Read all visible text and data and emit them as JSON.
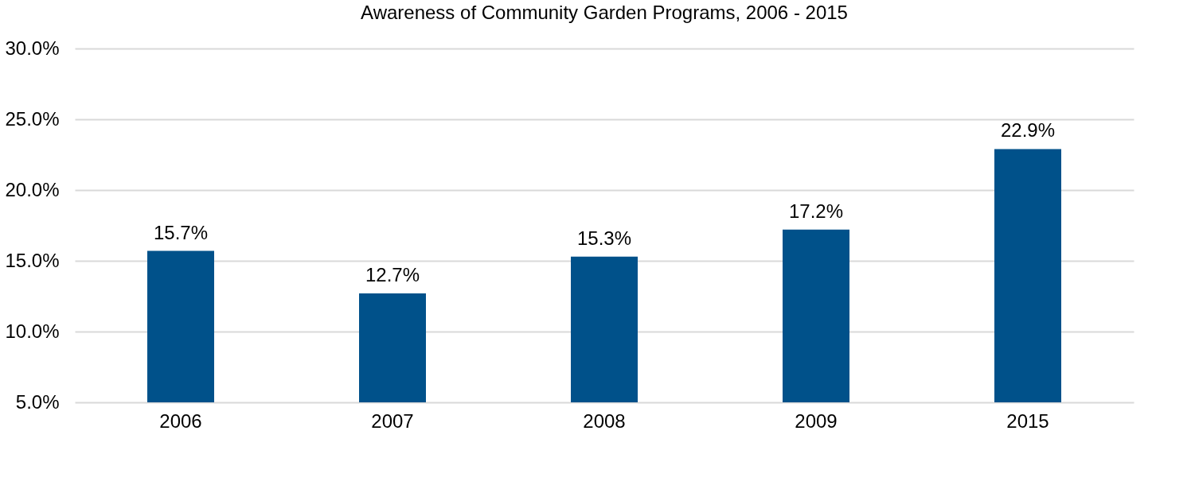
{
  "chart_data": {
    "type": "bar",
    "title": "Awareness of Community Garden Programs, 2006 - 2015",
    "categories": [
      "2006",
      "2007",
      "2008",
      "2009",
      "2015"
    ],
    "values": [
      15.7,
      12.7,
      15.3,
      17.2,
      22.9
    ],
    "value_labels": [
      "15.7%",
      "12.7%",
      "15.3%",
      "17.2%",
      "22.9%"
    ],
    "color": "#00518a",
    "ylim": [
      5,
      30
    ],
    "yticks": [
      {
        "value": 5,
        "label": "5.0%"
      },
      {
        "value": 10,
        "label": "10.0%"
      },
      {
        "value": 15,
        "label": "15.0%"
      },
      {
        "value": 20,
        "label": "20.0%"
      },
      {
        "value": 25,
        "label": "25.0%"
      },
      {
        "value": 30,
        "label": "30.0%"
      }
    ],
    "grid": "y"
  }
}
